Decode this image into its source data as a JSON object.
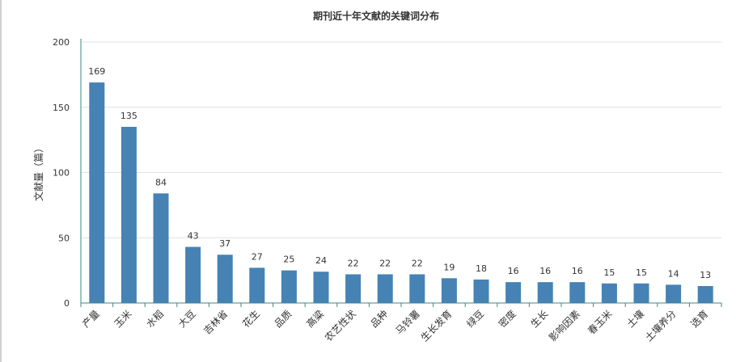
{
  "chart_data": {
    "type": "bar",
    "title": "期刊近十年文献的关键词分布",
    "xlabel": "",
    "ylabel": "文献量（篇）",
    "ylim": [
      0,
      200
    ],
    "yticks": [
      0,
      50,
      100,
      150,
      200
    ],
    "grid": true,
    "categories": [
      "产量",
      "玉米",
      "水稻",
      "大豆",
      "吉林省",
      "花生",
      "品质",
      "高粱",
      "农艺性状",
      "品种",
      "马铃薯",
      "生长发育",
      "绿豆",
      "密度",
      "生长",
      "影响因素",
      "春玉米",
      "土壤",
      "土壤养分",
      "选育"
    ],
    "values": [
      169,
      135,
      84,
      43,
      37,
      27,
      25,
      24,
      22,
      22,
      22,
      19,
      18,
      16,
      16,
      16,
      15,
      15,
      14,
      13
    ],
    "colors": {
      "bar": "#4682b4",
      "axis": "#3a8a8a",
      "grid": "#e0e0e0",
      "text": "#333333"
    }
  }
}
